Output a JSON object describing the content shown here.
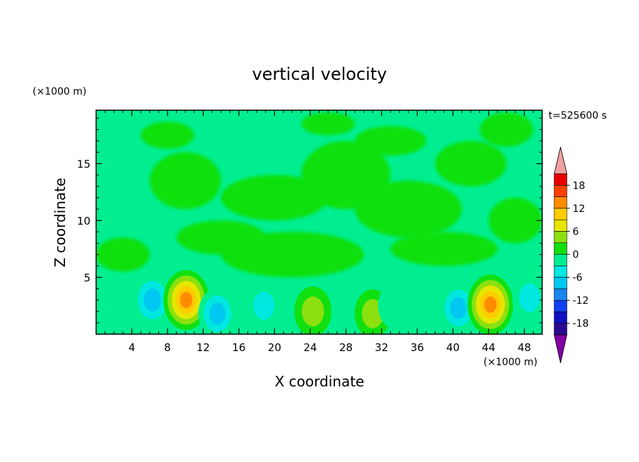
{
  "chart_data": {
    "type": "heatmap",
    "title": "vertical velocity",
    "xlabel": "X coordinate",
    "ylabel": "Z coordinate",
    "x_unit": "(×1000 m)",
    "y_unit": "(×1000 m)",
    "time_label": "t=525600 s",
    "xlim": [
      0,
      50
    ],
    "ylim": [
      0,
      19.7
    ],
    "x_ticks": [
      4,
      8,
      12,
      16,
      20,
      24,
      28,
      32,
      36,
      40,
      44,
      48
    ],
    "y_ticks": [
      5,
      10,
      15
    ],
    "colorbar": {
      "levels": [
        -21,
        -18,
        -15,
        -12,
        -9,
        -6,
        -3,
        0,
        3,
        6,
        9,
        12,
        15,
        18,
        21
      ],
      "tick_labels": [
        18,
        12,
        6,
        0,
        -6,
        -12,
        -18
      ],
      "colors": [
        "#8000a0",
        "#2a0a90",
        "#1010c0",
        "#1040f0",
        "#1a86f0",
        "#00c8f0",
        "#00e8e0",
        "#00ee90",
        "#10e010",
        "#8ce010",
        "#e6e600",
        "#ffcc00",
        "#ff8c00",
        "#ff4000",
        "#e80000",
        "#f0a0a0"
      ]
    },
    "features": [
      {
        "x": 6.3,
        "z": 3.0,
        "w": -11
      },
      {
        "x": 10.1,
        "z": 3.0,
        "w": 16
      },
      {
        "x": 13.6,
        "z": 1.8,
        "w": -9
      },
      {
        "x": 18.8,
        "z": 2.5,
        "w": -6
      },
      {
        "x": 24.3,
        "z": 2.0,
        "w": 8
      },
      {
        "x": 31.0,
        "z": 1.8,
        "w": 7
      },
      {
        "x": 33.5,
        "z": 2.5,
        "w": -5
      },
      {
        "x": 40.6,
        "z": 2.3,
        "w": -9
      },
      {
        "x": 44.2,
        "z": 2.6,
        "w": 16
      },
      {
        "x": 48.6,
        "z": 3.2,
        "w": -6
      }
    ],
    "background": "mostly weak positive (0 to 3) above 5 km with patches of weak negative"
  }
}
